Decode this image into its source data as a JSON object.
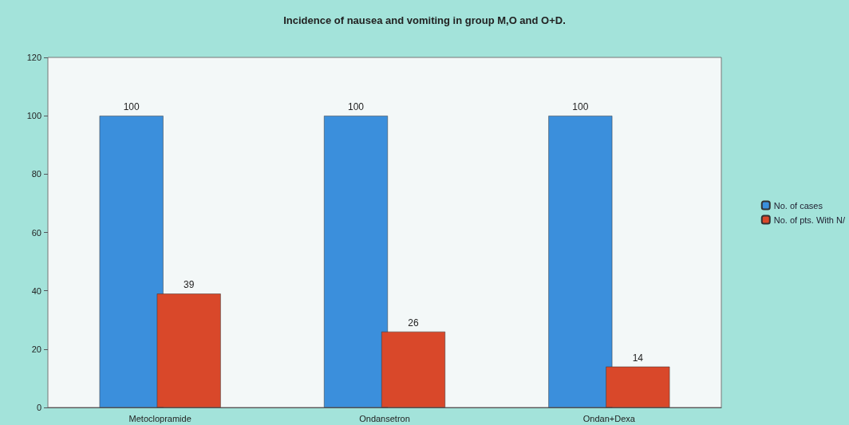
{
  "chart_data": {
    "type": "bar",
    "title": "Incidence of nausea and vomiting in group M,O and O+D.",
    "categories": [
      "Metoclopramide",
      "Ondansetron",
      "Ondan+Dexa"
    ],
    "series": [
      {
        "name": "No. of cases",
        "color": "#3b8fdc",
        "values": [
          100,
          100,
          100
        ]
      },
      {
        "name": "No. of pts. With N/",
        "color": "#d9482a",
        "values": [
          39,
          26,
          14
        ]
      }
    ],
    "ylim": [
      0,
      120
    ],
    "yticks": [
      0,
      20,
      40,
      60,
      80,
      100,
      120
    ],
    "grid": false,
    "legend": "right",
    "data_labels": true
  }
}
